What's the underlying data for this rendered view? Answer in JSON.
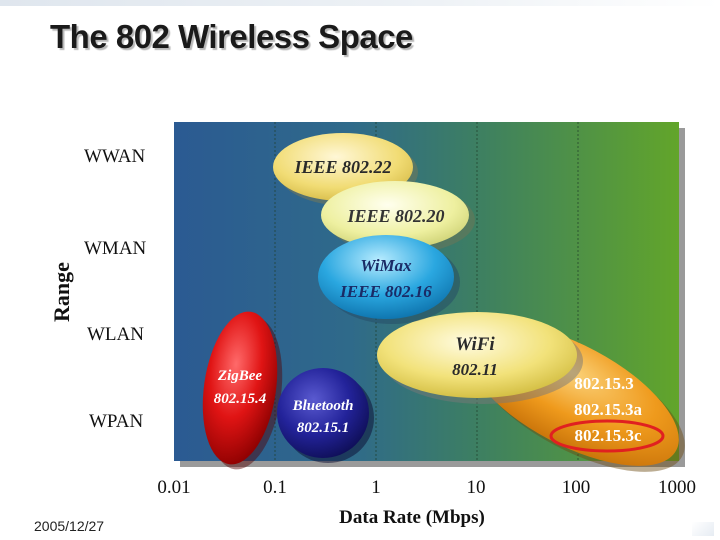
{
  "slide": {
    "title": "The 802 Wireless Space",
    "date": "2005/12/27"
  },
  "colors": {
    "band_blue": "#2f5f95",
    "band_green": "#5a9e2e",
    "zigbee": "#e01414",
    "bluetooth": "#1f1f8f",
    "wifi": "#f0e27a",
    "uwb_orange": "#ef9a1c",
    "ieee80222": "#f3de78",
    "ieee80220": "#eef0a0",
    "wimax": "#2aa7e0",
    "highlight_ring": "#e02020"
  },
  "chart_data": {
    "type": "diagram",
    "xlabel": "Data Rate (Mbps)",
    "ylabel": "Range",
    "x_scale": "log",
    "x_ticks": [
      "0.01",
      "0.1",
      "1",
      "10",
      "100",
      "1000"
    ],
    "y_categories": [
      "WWAN",
      "WMAN",
      "WLAN",
      "WPAN"
    ],
    "technologies": [
      {
        "id": "ieee80222",
        "lines": [
          "IEEE 802.22"
        ],
        "range": "WWAN",
        "rate_min": 0.2,
        "rate_max": 0.5
      },
      {
        "id": "ieee80220",
        "lines": [
          "IEEE 802.20"
        ],
        "range": "WMAN",
        "rate_min": 0.5,
        "rate_max": 2.5
      },
      {
        "id": "wimax",
        "lines": [
          "WiMax",
          "IEEE 802.16"
        ],
        "range": "WMAN",
        "rate_min": 0.4,
        "rate_max": 3
      },
      {
        "id": "wifi",
        "lines": [
          "WiFi",
          "802.11"
        ],
        "range": "WLAN",
        "rate_min": 1,
        "rate_max": 100
      },
      {
        "id": "uwb",
        "lines": [
          "802.15.3",
          "802.15.3a",
          "802.15.3c"
        ],
        "range": "WLAN-WPAN",
        "rate_min": 10,
        "rate_max": 1000,
        "highlighted": "802.15.3c"
      },
      {
        "id": "zigbee",
        "lines": [
          "ZigBee",
          "802.15.4"
        ],
        "range": "WPAN",
        "rate_min": 0.02,
        "rate_max": 0.25
      },
      {
        "id": "bluetooth",
        "lines": [
          "Bluetooth",
          "802.15.1"
        ],
        "range": "WPAN",
        "rate_min": 0.1,
        "rate_max": 1
      }
    ]
  }
}
